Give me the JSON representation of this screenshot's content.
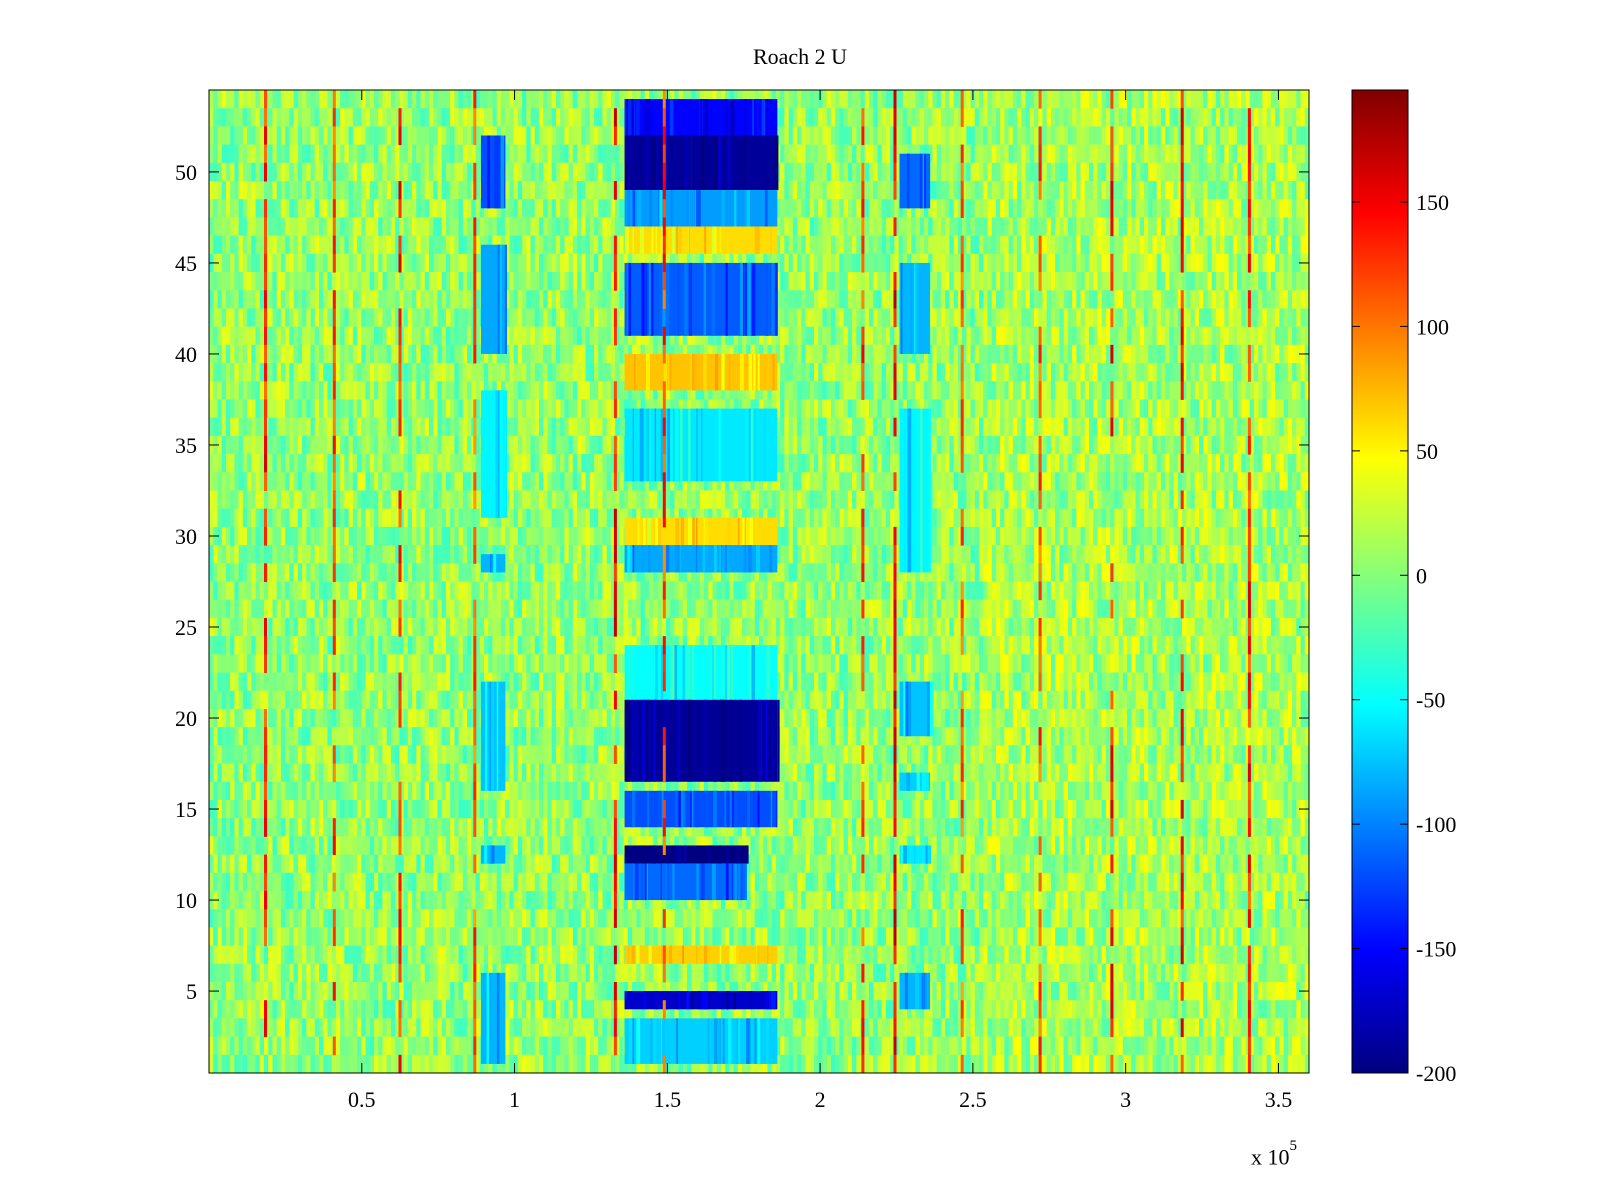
{
  "chart_data": {
    "type": "heatmap",
    "title": "Roach 2 U",
    "xlabel": "",
    "ylabel": "",
    "x_exponent_label": {
      "base": "x 10",
      "power": "5"
    },
    "xlim": [
      0,
      360000
    ],
    "ylim": [
      0.5,
      54.5
    ],
    "x_ticks": [
      50000,
      100000,
      150000,
      200000,
      250000,
      300000,
      350000
    ],
    "x_tick_labels": [
      "0.5",
      "1",
      "1.5",
      "2",
      "2.5",
      "3",
      "3.5"
    ],
    "y_ticks": [
      5,
      10,
      15,
      20,
      25,
      30,
      35,
      40,
      45,
      50
    ],
    "y_tick_labels": [
      "5",
      "10",
      "15",
      "20",
      "25",
      "30",
      "35",
      "40",
      "45",
      "50"
    ],
    "colorbar": {
      "range": [
        -200,
        195
      ],
      "ticks": [
        -200,
        -150,
        -100,
        -50,
        0,
        50,
        100,
        150
      ],
      "tick_labels": [
        "-200",
        "-150",
        "-100",
        "-50",
        "0",
        "50",
        "100",
        "150"
      ],
      "colormap": "jet"
    },
    "rows": 54,
    "baseline_value": 5,
    "vertical_lines": [
      {
        "x": 18500,
        "value": 160
      },
      {
        "x": 41000,
        "value": 150
      },
      {
        "x": 62500,
        "value": 160
      },
      {
        "x": 87000,
        "value": 140
      },
      {
        "x": 133000,
        "value": 170
      },
      {
        "x": 149000,
        "value": 150
      },
      {
        "x": 214000,
        "value": 150
      },
      {
        "x": 224500,
        "value": 175
      },
      {
        "x": 246500,
        "value": 140
      },
      {
        "x": 272000,
        "value": 145
      },
      {
        "x": 295500,
        "value": 165
      },
      {
        "x": 318500,
        "value": 165
      },
      {
        "x": 340500,
        "value": 160
      }
    ],
    "blocks": [
      {
        "x": [
          136000,
          186000
        ],
        "y": [
          49,
          52
        ],
        "value": -190
      },
      {
        "x": [
          136000,
          186000
        ],
        "y": [
          52,
          54
        ],
        "value": -150
      },
      {
        "x": [
          136000,
          186000
        ],
        "y": [
          47,
          49
        ],
        "value": -90
      },
      {
        "x": [
          136000,
          186000
        ],
        "y": [
          45.5,
          47
        ],
        "value": 60
      },
      {
        "x": [
          136000,
          186000
        ],
        "y": [
          41,
          45
        ],
        "value": -115
      },
      {
        "x": [
          136000,
          186000
        ],
        "y": [
          38,
          40
        ],
        "value": 70
      },
      {
        "x": [
          136000,
          186000
        ],
        "y": [
          33,
          37
        ],
        "value": -60
      },
      {
        "x": [
          136000,
          186000
        ],
        "y": [
          29.5,
          31
        ],
        "value": 60
      },
      {
        "x": [
          136000,
          186000
        ],
        "y": [
          28,
          29.5
        ],
        "value": -85
      },
      {
        "x": [
          136000,
          186000
        ],
        "y": [
          21,
          24
        ],
        "value": -50
      },
      {
        "x": [
          136000,
          186000
        ],
        "y": [
          16.5,
          21
        ],
        "value": -190
      },
      {
        "x": [
          136000,
          186000
        ],
        "y": [
          14,
          16
        ],
        "value": -120
      },
      {
        "x": [
          136000,
          176000
        ],
        "y": [
          12,
          13
        ],
        "value": -200
      },
      {
        "x": [
          136000,
          176000
        ],
        "y": [
          10,
          12
        ],
        "value": -110
      },
      {
        "x": [
          136000,
          186000
        ],
        "y": [
          6.5,
          7.5
        ],
        "value": 65
      },
      {
        "x": [
          136000,
          186000
        ],
        "y": [
          4,
          5
        ],
        "value": -170
      },
      {
        "x": [
          136000,
          186000
        ],
        "y": [
          1,
          3.5
        ],
        "value": -70
      },
      {
        "x": [
          89000,
          97000
        ],
        "y": [
          48,
          52
        ],
        "value": -120
      },
      {
        "x": [
          89000,
          97000
        ],
        "y": [
          40,
          46
        ],
        "value": -85
      },
      {
        "x": [
          89000,
          97000
        ],
        "y": [
          31,
          38
        ],
        "value": -55
      },
      {
        "x": [
          89000,
          97000
        ],
        "y": [
          28,
          29
        ],
        "value": -80
      },
      {
        "x": [
          89000,
          97000
        ],
        "y": [
          16,
          22
        ],
        "value": -75
      },
      {
        "x": [
          89000,
          97000
        ],
        "y": [
          12,
          13
        ],
        "value": -80
      },
      {
        "x": [
          89000,
          97000
        ],
        "y": [
          1,
          6
        ],
        "value": -80
      },
      {
        "x": [
          226000,
          236000
        ],
        "y": [
          48,
          51
        ],
        "value": -110
      },
      {
        "x": [
          226000,
          236000
        ],
        "y": [
          40,
          45
        ],
        "value": -80
      },
      {
        "x": [
          226000,
          236000
        ],
        "y": [
          28,
          37
        ],
        "value": -55
      },
      {
        "x": [
          226000,
          236000
        ],
        "y": [
          19,
          22
        ],
        "value": -75
      },
      {
        "x": [
          226000,
          236000
        ],
        "y": [
          16,
          17
        ],
        "value": -70
      },
      {
        "x": [
          226000,
          236000
        ],
        "y": [
          12,
          13
        ],
        "value": -60
      },
      {
        "x": [
          226000,
          236000
        ],
        "y": [
          4,
          6
        ],
        "value": -80
      }
    ]
  }
}
